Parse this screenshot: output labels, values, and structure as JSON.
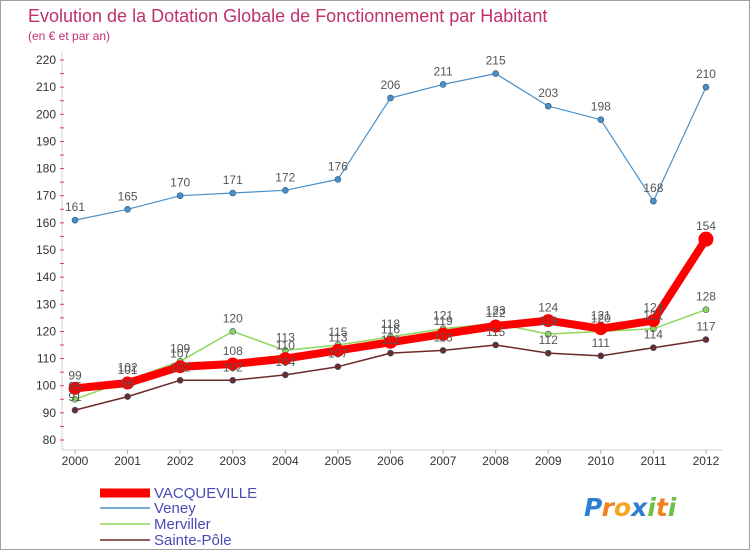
{
  "chart_data": {
    "type": "line",
    "title": "Evolution de la Dotation Globale de Fonctionnement par Habitant",
    "subtitle": "(en € et par an)",
    "x": [
      "2000",
      "2001",
      "2002",
      "2003",
      "2004",
      "2005",
      "2006",
      "2007",
      "2008",
      "2009",
      "2010",
      "2011",
      "2012"
    ],
    "ylim": [
      80,
      220
    ],
    "yticks": [
      80,
      90,
      100,
      110,
      120,
      130,
      140,
      150,
      160,
      170,
      180,
      190,
      200,
      210,
      220
    ],
    "grid": false,
    "legend_position": "bottom-left",
    "series": [
      {
        "name": "VACQUEVILLE",
        "color": "#ff0000",
        "values": [
          99,
          101,
          107,
          108,
          110,
          113,
          116,
          119,
          122,
          124,
          121,
          124,
          154
        ]
      },
      {
        "name": "Veney",
        "color": "#4a90c8",
        "values": [
          161,
          165,
          170,
          171,
          172,
          176,
          206,
          211,
          215,
          203,
          198,
          168,
          210
        ]
      },
      {
        "name": "Merviller",
        "color": "#8fd85a",
        "values": [
          95,
          102,
          109,
          120,
          113,
          115,
          118,
          121,
          123,
          119,
          120,
          121,
          128
        ]
      },
      {
        "name": "Sainte-Pôle",
        "color": "#6e2a2a",
        "values": [
          91,
          96,
          102,
          102,
          104,
          107,
          112,
          113,
          115,
          112,
          111,
          114,
          117
        ]
      }
    ]
  },
  "brand": {
    "text": "Proxiti",
    "letter_colors": [
      "#2f7fd0",
      "#f08020",
      "#f5a623",
      "#2f7fd0",
      "#6cc04a",
      "#f08020",
      "#6cc04a"
    ]
  }
}
